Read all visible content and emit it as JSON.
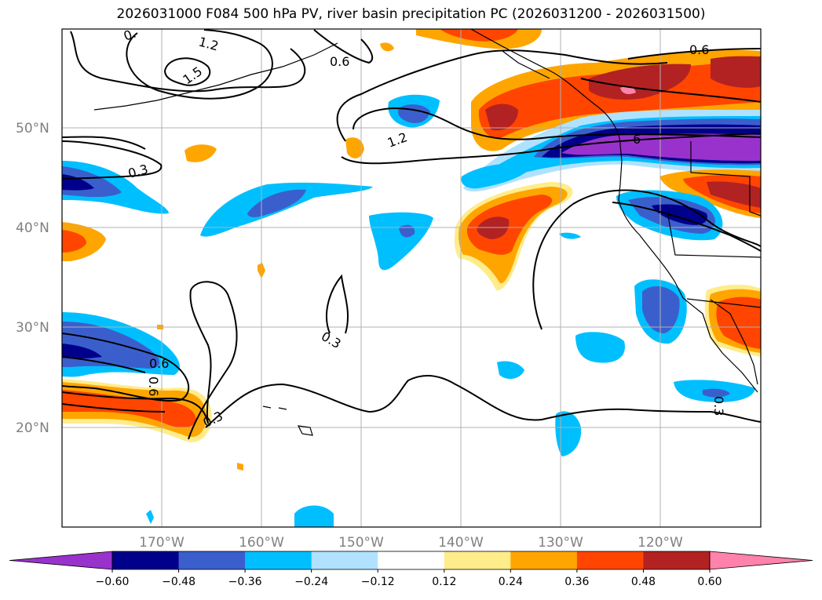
{
  "title": "2026031000 F084 500 hPa PV, river basin precipitation PC (2026031200 - 2026031500)",
  "map": {
    "lat_labels": [
      "50°N",
      "40°N",
      "30°N",
      "20°N"
    ],
    "lon_labels": [
      "170°W",
      "160°W",
      "150°W",
      "140°W",
      "130°W",
      "120°W"
    ]
  },
  "contour_labels": [
    "0.",
    "1.2",
    "1.5",
    "0.6",
    "0.6",
    "1.2",
    "0.3",
    "6",
    "0.3",
    "0.6",
    "0.6",
    "0.3",
    "0.3"
  ],
  "colorbar": {
    "ticks": [
      "−0.60",
      "−0.48",
      "−0.36",
      "−0.24",
      "−0.12",
      "0.12",
      "0.24",
      "0.36",
      "0.48",
      "0.60"
    ],
    "colors": [
      "#9932cc",
      "#00008b",
      "#3a5fcd",
      "#00bfff",
      "#b0e2ff",
      "#ffffff",
      "#ffec8b",
      "#ffa500",
      "#ff4500",
      "#b22222",
      "#ff82ab"
    ]
  },
  "colors": {
    "land_outline": "#000000",
    "grid": "#b0b0b0",
    "label_gray": "#808080"
  }
}
